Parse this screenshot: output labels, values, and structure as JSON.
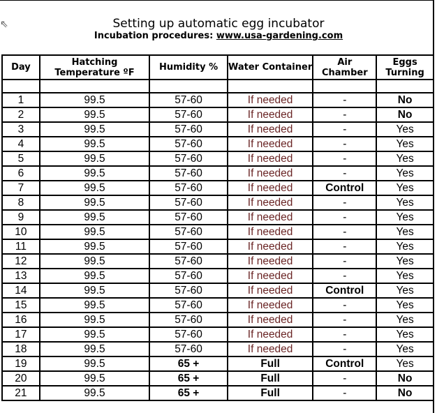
{
  "title": "Setting up automatic egg incubator",
  "subtitle_prefix": "Incubation procedures: ",
  "subtitle_link": "www.usa-gardening.com",
  "headers": [
    "Day",
    "Hatching Temperature ºF",
    "Humidity %",
    "Water Container",
    "Air Chamber",
    "Eggs Turning"
  ],
  "rows": [
    [
      "1",
      "99.5",
      "57-60",
      "If needed",
      "-",
      "No"
    ],
    [
      "2",
      "99.5",
      "57-60",
      "If needed",
      "-",
      "No"
    ],
    [
      "3",
      "99.5",
      "57-60",
      "If needed",
      "-",
      "Yes"
    ],
    [
      "4",
      "99.5",
      "57-60",
      "If needed",
      "-",
      "Yes"
    ],
    [
      "5",
      "99.5",
      "57-60",
      "If needed",
      "-",
      "Yes"
    ],
    [
      "6",
      "99.5",
      "57-60",
      "If needed",
      "-",
      "Yes"
    ],
    [
      "7",
      "99.5",
      "57-60",
      "If needed",
      "Control",
      "Yes"
    ],
    [
      "8",
      "99.5",
      "57-60",
      "If needed",
      "-",
      "Yes"
    ],
    [
      "9",
      "99.5",
      "57-60",
      "If needed",
      "-",
      "Yes"
    ],
    [
      "10",
      "99.5",
      "57-60",
      "If needed",
      "-",
      "Yes"
    ],
    [
      "11",
      "99.5",
      "57-60",
      "If needed",
      "-",
      "Yes"
    ],
    [
      "12",
      "99.5",
      "57-60",
      "If needed",
      "-",
      "Yes"
    ],
    [
      "13",
      "99.5",
      "57-60",
      "If needed",
      "-",
      "Yes"
    ],
    [
      "14",
      "99.5",
      "57-60",
      "If needed",
      "Control",
      "Yes"
    ],
    [
      "15",
      "99.5",
      "57-60",
      "If needed",
      "-",
      "Yes"
    ],
    [
      "16",
      "99.5",
      "57-60",
      "If needed",
      "-",
      "Yes"
    ],
    [
      "17",
      "99.5",
      "57-60",
      "If needed",
      "-",
      "Yes"
    ],
    [
      "18",
      "99.5",
      "57-60",
      "If needed",
      "-",
      "Yes"
    ],
    [
      "19",
      "99.5",
      "65 +",
      "Full",
      "Control",
      "Yes"
    ],
    [
      "20",
      "99.5",
      "65 +",
      "Full",
      "-",
      "No"
    ],
    [
      "21",
      "99.5",
      "65 +",
      "Full",
      "-",
      "No"
    ]
  ],
  "colors": {
    "if_needed_text": "#6a2525"
  }
}
